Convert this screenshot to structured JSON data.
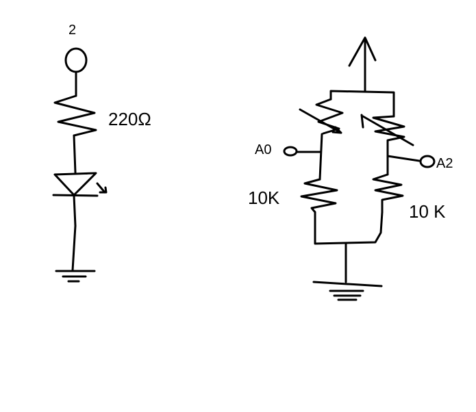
{
  "left_circuit": {
    "pin_label": "2",
    "resistor_label": "220Ω"
  },
  "right_circuit": {
    "left_pin_label": "A0",
    "right_pin_label": "A2",
    "left_resistor_label": "10K",
    "right_resistor_label": "10 K"
  },
  "colors": {
    "ink": "#000000",
    "background": "#ffffff"
  }
}
